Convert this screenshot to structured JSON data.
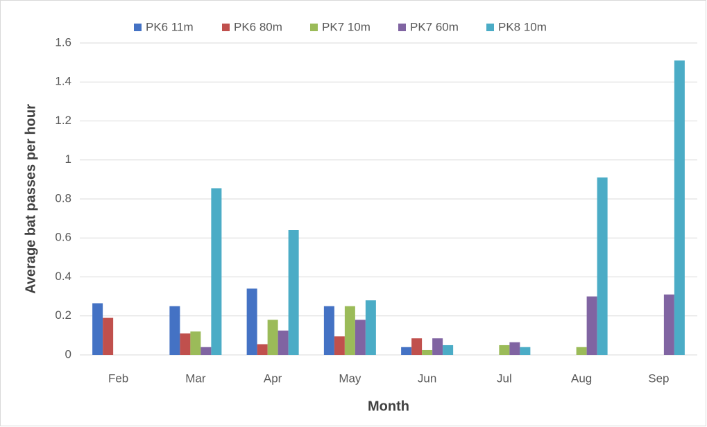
{
  "chart_data": {
    "type": "bar",
    "y_label": "Average bat passes per hour",
    "x_label": "Month",
    "categories": [
      "Feb",
      "Mar",
      "Apr",
      "May",
      "Jun",
      "Jul",
      "Aug",
      "Sep"
    ],
    "series": [
      {
        "name": "PK6 11m",
        "color": "#4472c4",
        "values": [
          0.265,
          0.25,
          0.34,
          0.25,
          0.04,
          0,
          0,
          0
        ]
      },
      {
        "name": "PK6 80m",
        "color": "#c0504d",
        "values": [
          0.19,
          0.11,
          0.055,
          0.095,
          0.085,
          0,
          0,
          0
        ]
      },
      {
        "name": "PK7 10m",
        "color": "#9bbb59",
        "values": [
          0,
          0.12,
          0.18,
          0.25,
          0.025,
          0.05,
          0.04,
          0
        ]
      },
      {
        "name": "PK7 60m",
        "color": "#8064a2",
        "values": [
          0,
          0.04,
          0.125,
          0.18,
          0.085,
          0.065,
          0.3,
          0.31
        ]
      },
      {
        "name": "PK8 10m",
        "color": "#4bacc6",
        "values": [
          0,
          0.855,
          0.64,
          0.28,
          0.05,
          0.04,
          0.91,
          1.51
        ]
      }
    ],
    "ylim": [
      0,
      1.6
    ],
    "yticks": [
      0,
      0.2,
      0.4,
      0.6,
      0.8,
      1,
      1.2,
      1.4,
      1.6
    ],
    "grid": true,
    "legend": "top"
  }
}
